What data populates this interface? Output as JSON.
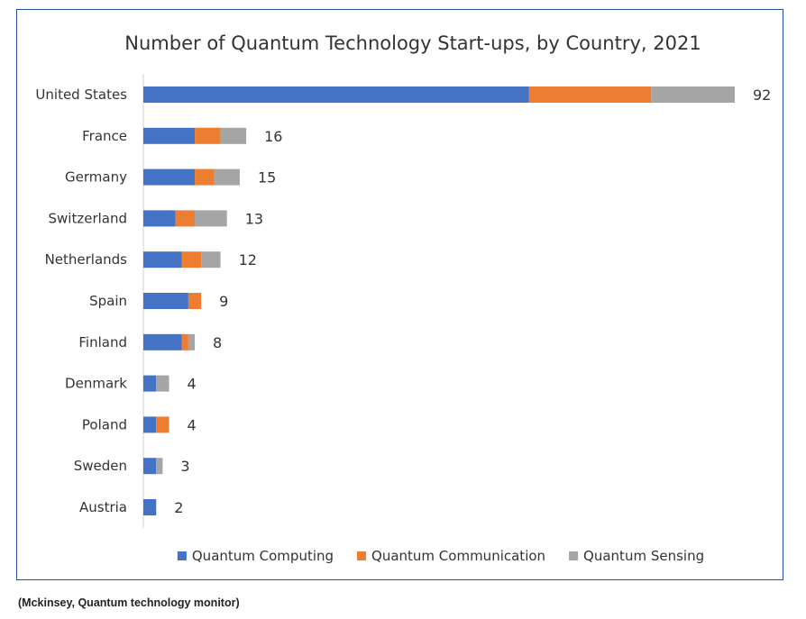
{
  "chart_data": {
    "type": "bar",
    "orientation": "horizontal",
    "stacked": true,
    "title": "Number of Quantum Technology Start-ups, by Country, 2021",
    "categories": [
      "United States",
      "France",
      "Germany",
      "Switzerland",
      "Netherlands",
      "Spain",
      "Finland",
      "Denmark",
      "Poland",
      "Sweden",
      "Austria"
    ],
    "series": [
      {
        "name": "Quantum Computing",
        "color": "#4472c4",
        "values": [
          60,
          8,
          8,
          5,
          6,
          7,
          6,
          2,
          2,
          2,
          2
        ]
      },
      {
        "name": "Quantum Communication",
        "color": "#ed7d31",
        "values": [
          19,
          4,
          3,
          3,
          3,
          2,
          1,
          0,
          2,
          0,
          0
        ]
      },
      {
        "name": "Quantum Sensing",
        "color": "#a5a5a5",
        "values": [
          13,
          4,
          4,
          5,
          3,
          0,
          1,
          2,
          0,
          1,
          0
        ]
      }
    ],
    "totals": [
      92,
      16,
      15,
      13,
      12,
      9,
      8,
      4,
      4,
      3,
      2
    ],
    "xlim": [
      0,
      92
    ],
    "grid": false,
    "legend_position": "bottom"
  },
  "source": "(Mckinsey, Quantum technology monitor)"
}
